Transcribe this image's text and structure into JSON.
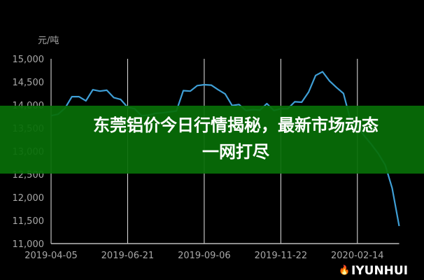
{
  "chart_data": {
    "type": "line",
    "ylabel": "元/吨",
    "ylim": [
      11000,
      15000
    ],
    "yticks": [
      "11,000",
      "11,500",
      "12,000",
      "12,500",
      "13,000",
      "13,500",
      "14,000",
      "14,500",
      "15,000"
    ],
    "ytick_values": [
      11000,
      11500,
      12000,
      12500,
      13000,
      13500,
      14000,
      14500,
      15000
    ],
    "xticks": [
      "2019-04-05",
      "2019-06-21",
      "2019-09-06",
      "2019-11-22",
      "2020-02-14"
    ],
    "xtick_index": [
      0,
      11,
      22,
      33,
      44
    ],
    "grid": "vertical",
    "line_color": "#3f9fd6",
    "values": [
      13770,
      13800,
      13930,
      14180,
      14180,
      14090,
      14330,
      14300,
      14320,
      14160,
      14120,
      13950,
      13920,
      13770,
      13780,
      13820,
      13830,
      13850,
      13870,
      14310,
      14300,
      14420,
      14440,
      14430,
      14330,
      14240,
      13990,
      14010,
      13880,
      13900,
      13890,
      14030,
      13880,
      13920,
      13920,
      14070,
      14060,
      14280,
      14640,
      14720,
      14520,
      14380,
      14250,
      13680,
      13550,
      13330,
      13150,
      12950,
      12700,
      12200,
      11380
    ]
  },
  "banner": {
    "line1": "东莞铝价今日行情揭秘，最新市场动态",
    "line2": "一网打尽",
    "color": "#086e08"
  },
  "watermark": {
    "text": "IYUNHUI",
    "icon": "flame-icon"
  }
}
